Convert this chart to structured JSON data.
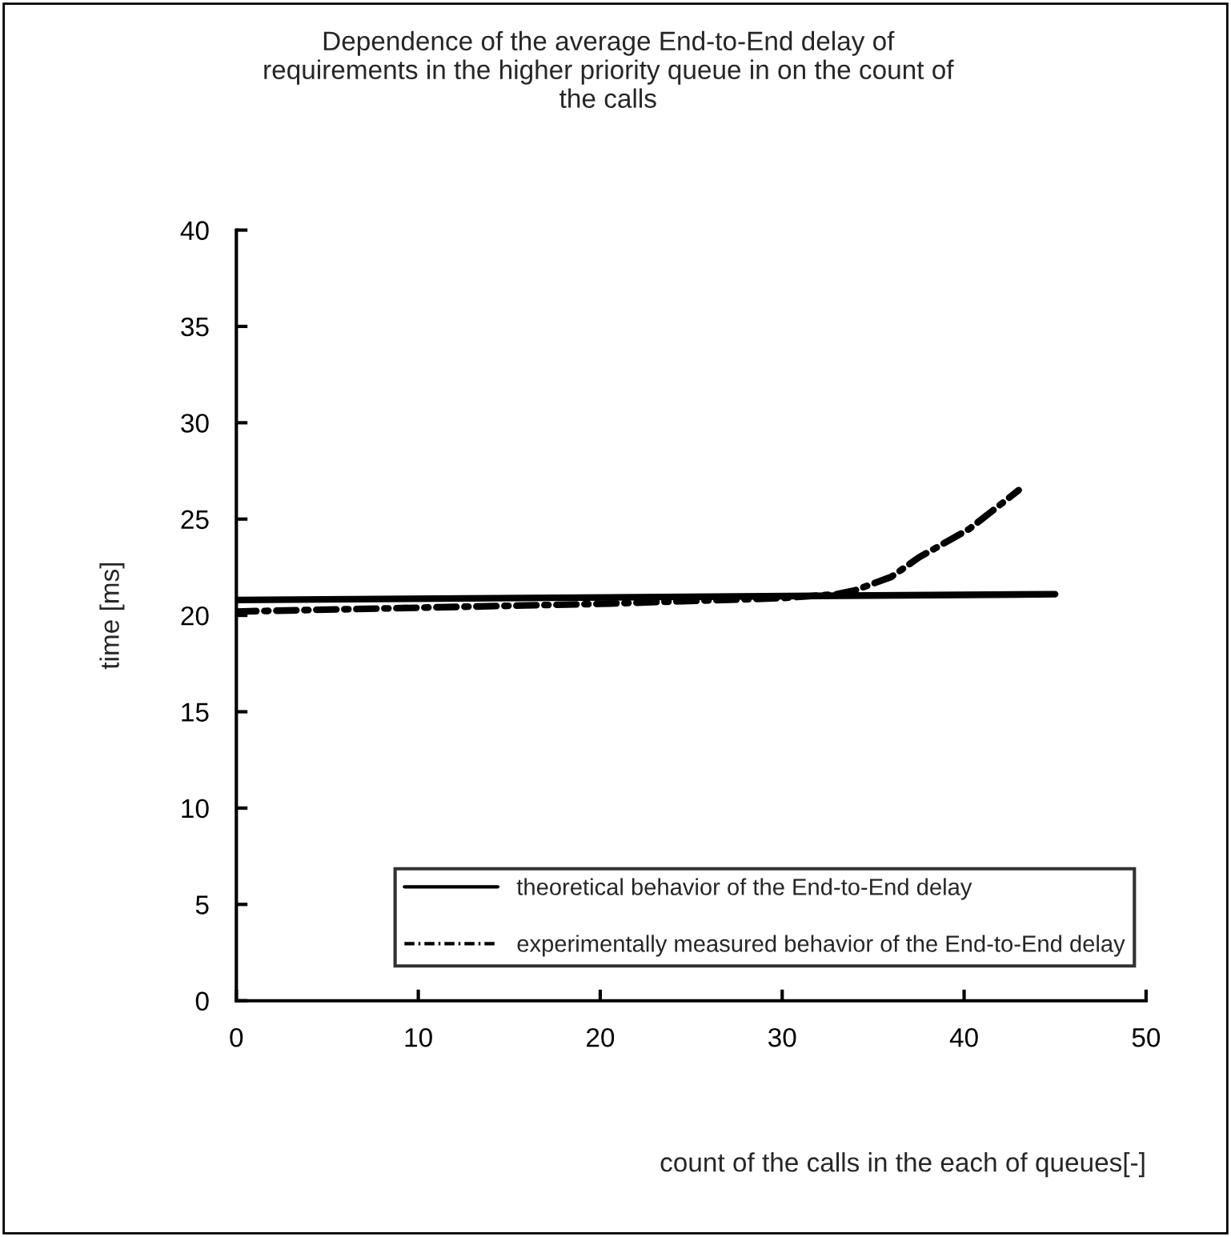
{
  "chart_data": {
    "type": "line",
    "title": "Dependence of the average End-to-End delay of requirements in the higher priority queue in on the count of the calls",
    "xlabel": "count of the calls in the each of queues[-]",
    "ylabel": "time [ms]",
    "xlim": [
      0,
      50
    ],
    "xticks": [
      0,
      10,
      20,
      30,
      40,
      50
    ],
    "ylim": [
      0,
      40
    ],
    "yticks": [
      0,
      5,
      10,
      15,
      20,
      25,
      30,
      35,
      40
    ],
    "grid": false,
    "legend": "bottom right",
    "marker": "none",
    "series": [
      {
        "name": "theoretical behavior of the End-to-End delay",
        "color": "#000000",
        "line_style": "solid",
        "x": [
          0,
          45
        ],
        "values": [
          20.8,
          21.1
        ]
      },
      {
        "name": "experimentally measured behavior of the End-to-End delay",
        "color": "#000000",
        "line_style": "dashdot",
        "x": [
          0,
          10,
          20,
          30,
          33,
          34,
          36,
          37.5,
          39,
          40.3,
          43
        ],
        "values": [
          20.2,
          20.4,
          20.6,
          20.9,
          21.1,
          21.3,
          22.0,
          23.0,
          23.8,
          24.5,
          26.5
        ]
      }
    ]
  }
}
